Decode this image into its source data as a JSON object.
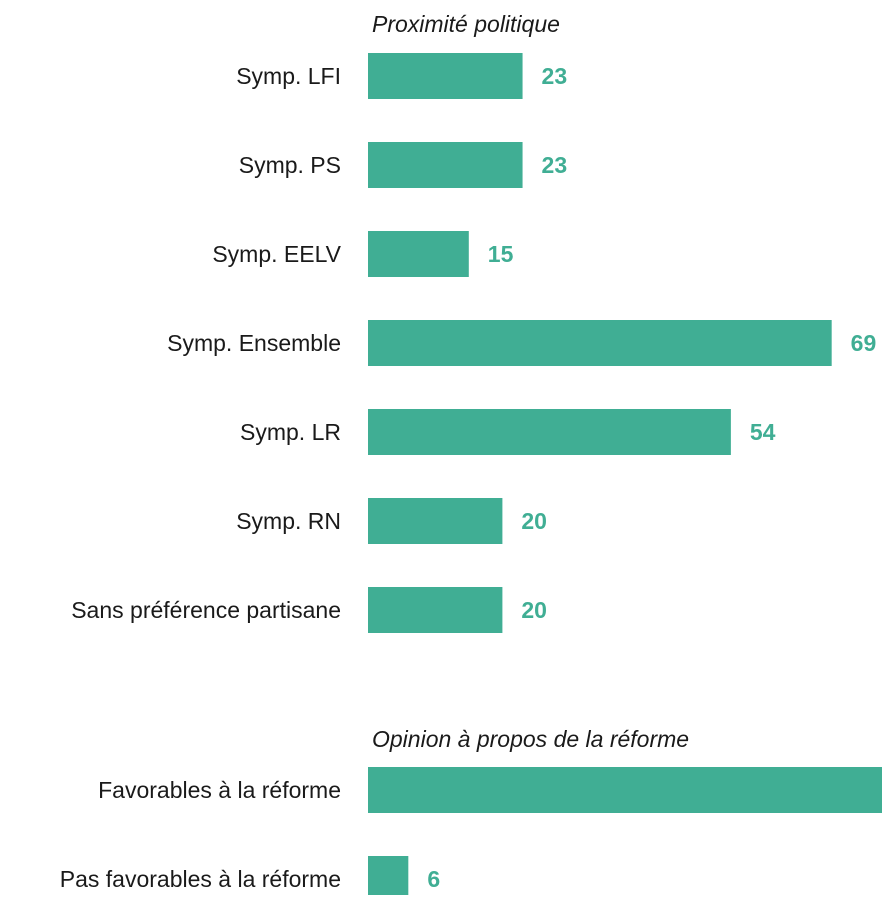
{
  "colors": {
    "bar": "#40ae94",
    "value_text": "#40ae94",
    "label_text": "#1a1a1a"
  },
  "chart_data": [
    {
      "type": "bar",
      "orientation": "horizontal",
      "title": "Proximité politique",
      "categories": [
        "Symp. LFI",
        "Symp. PS",
        "Symp. EELV",
        "Symp. Ensemble",
        "Symp. LR",
        "Symp. RN",
        "Sans préférence partisane"
      ],
      "values": [
        23,
        23,
        15,
        69,
        54,
        20,
        20
      ],
      "data_labels": true,
      "grid": false,
      "legend": "none"
    },
    {
      "type": "bar",
      "orientation": "horizontal",
      "title": "Opinion à propos de la réforme",
      "categories": [
        "Favorables à la réforme",
        "Pas favorables à la réforme"
      ],
      "values": [
        77,
        6
      ],
      "data_labels": true,
      "grid": false,
      "legend": "none"
    }
  ]
}
